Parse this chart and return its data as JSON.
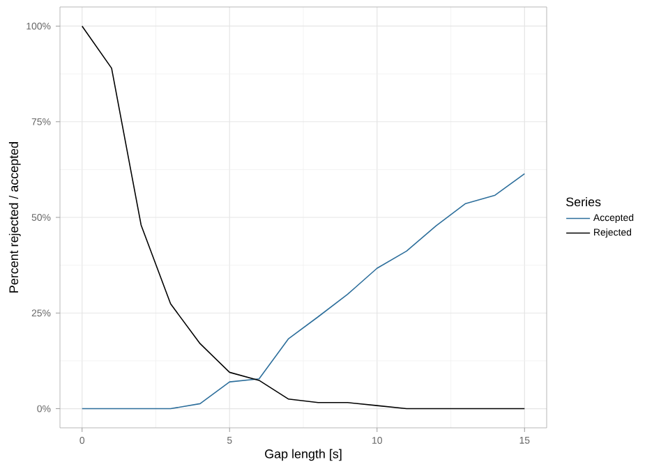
{
  "chart_data": {
    "type": "line",
    "xlabel": "Gap length [s]",
    "ylabel": "Percent rejected / accepted",
    "legend_title": "Series",
    "x": [
      0,
      1,
      2,
      3,
      4,
      5,
      6,
      7,
      8,
      9,
      10,
      11,
      12,
      13,
      14,
      15
    ],
    "series": [
      {
        "name": "Accepted",
        "color": "#2c6e9b",
        "values": [
          0,
          0,
          0,
          0,
          1.3,
          7.0,
          7.8,
          18.3,
          24.0,
          29.9,
          36.7,
          41.2,
          47.8,
          53.6,
          55.8,
          61.4
        ]
      },
      {
        "name": "Rejected",
        "color": "#000000",
        "values": [
          100,
          89,
          48,
          27.4,
          17,
          9.5,
          7.4,
          2.5,
          1.6,
          1.6,
          0.8,
          0,
          0,
          0,
          0,
          0
        ]
      }
    ],
    "xlim": [
      -0.75,
      15.75
    ],
    "ylim": [
      -5,
      105
    ],
    "xticks": [
      0,
      5,
      10,
      15
    ],
    "yticks": [
      {
        "value": 0,
        "label": "0%"
      },
      {
        "value": 25,
        "label": "25%"
      },
      {
        "value": 50,
        "label": "50%"
      },
      {
        "value": 75,
        "label": "75%"
      },
      {
        "value": 100,
        "label": "100%"
      }
    ],
    "grid": true,
    "legend": "right",
    "line_style": "solid",
    "marker": "none"
  }
}
